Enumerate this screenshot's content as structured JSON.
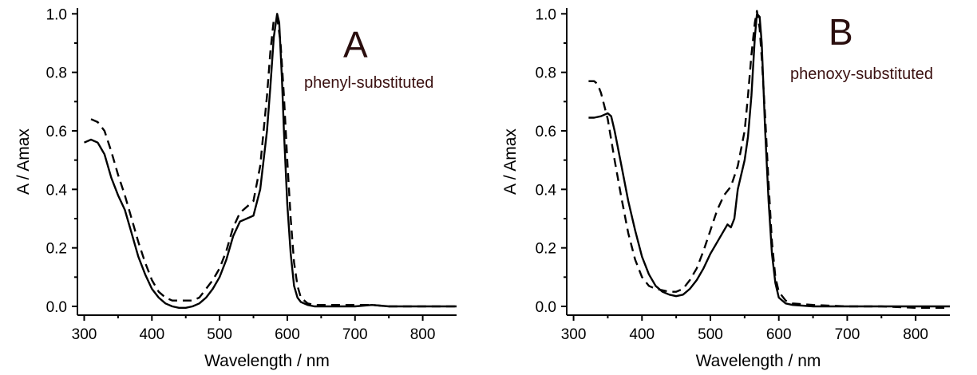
{
  "chart_data": [
    {
      "type": "line",
      "panel_label": "A",
      "annotation": "phenyl-substituted",
      "xlabel": "Wavelength / nm",
      "ylabel": "A / Amax",
      "xlim": [
        290,
        850
      ],
      "ylim": [
        -0.03,
        1.02
      ],
      "xticks": [
        300,
        400,
        500,
        600,
        700,
        800
      ],
      "yticks": [
        "0.0",
        "0.2",
        "0.4",
        "0.6",
        "0.8",
        "1.0"
      ],
      "series": [
        {
          "style": "solid",
          "x": [
            300,
            310,
            320,
            330,
            340,
            350,
            360,
            370,
            380,
            390,
            400,
            410,
            420,
            430,
            440,
            450,
            460,
            470,
            480,
            490,
            500,
            510,
            520,
            530,
            540,
            550,
            560,
            570,
            575,
            580,
            585,
            588,
            592,
            595,
            600,
            605,
            610,
            615,
            620,
            630,
            640,
            700,
            725,
            750,
            800,
            850
          ],
          "y": [
            0.56,
            0.57,
            0.56,
            0.52,
            0.44,
            0.38,
            0.33,
            0.25,
            0.17,
            0.11,
            0.06,
            0.03,
            0.01,
            0.0,
            -0.005,
            -0.005,
            0.0,
            0.01,
            0.03,
            0.06,
            0.1,
            0.16,
            0.24,
            0.29,
            0.3,
            0.31,
            0.4,
            0.6,
            0.75,
            0.92,
            1.0,
            0.97,
            0.78,
            0.6,
            0.35,
            0.18,
            0.07,
            0.03,
            0.015,
            0.005,
            0.0,
            0.0,
            0.005,
            0.0,
            0.0,
            0.0
          ]
        },
        {
          "style": "dashed",
          "x": [
            310,
            320,
            330,
            340,
            350,
            360,
            370,
            380,
            390,
            400,
            410,
            420,
            430,
            440,
            450,
            460,
            470,
            480,
            490,
            500,
            510,
            520,
            530,
            540,
            550,
            560,
            570,
            575,
            580,
            585,
            590,
            595,
            600,
            605,
            610,
            615,
            620,
            630,
            640,
            700,
            725,
            750,
            800,
            850
          ],
          "y": [
            0.64,
            0.63,
            0.6,
            0.53,
            0.45,
            0.38,
            0.3,
            0.22,
            0.15,
            0.09,
            0.05,
            0.03,
            0.02,
            0.02,
            0.02,
            0.02,
            0.03,
            0.06,
            0.09,
            0.13,
            0.19,
            0.27,
            0.32,
            0.34,
            0.36,
            0.48,
            0.72,
            0.87,
            0.98,
            0.99,
            0.9,
            0.72,
            0.5,
            0.3,
            0.15,
            0.07,
            0.03,
            0.01,
            0.005,
            0.005,
            0.005,
            0.0,
            0.0,
            0.0
          ]
        }
      ]
    },
    {
      "type": "line",
      "panel_label": "B",
      "annotation": "phenoxy-substituted",
      "xlabel": "Wavelength / nm",
      "ylabel": "A / Amax",
      "xlim": [
        290,
        850
      ],
      "ylim": [
        -0.03,
        1.02
      ],
      "xticks": [
        300,
        400,
        500,
        600,
        700,
        800
      ],
      "yticks": [
        "0.0",
        "0.2",
        "0.4",
        "0.6",
        "0.8",
        "1.0"
      ],
      "series": [
        {
          "style": "solid",
          "x": [
            322,
            330,
            340,
            345,
            350,
            355,
            360,
            370,
            380,
            390,
            400,
            410,
            420,
            430,
            440,
            450,
            460,
            470,
            480,
            490,
            500,
            510,
            520,
            525,
            530,
            535,
            540,
            550,
            555,
            560,
            565,
            568,
            572,
            575,
            578,
            580,
            585,
            590,
            595,
            600,
            610,
            620,
            650,
            700,
            750,
            800,
            850
          ],
          "y": [
            0.645,
            0.645,
            0.65,
            0.655,
            0.66,
            0.65,
            0.6,
            0.48,
            0.36,
            0.26,
            0.17,
            0.11,
            0.07,
            0.05,
            0.04,
            0.035,
            0.04,
            0.06,
            0.09,
            0.13,
            0.18,
            0.22,
            0.26,
            0.28,
            0.27,
            0.3,
            0.4,
            0.5,
            0.58,
            0.72,
            0.92,
            1.0,
            0.99,
            0.9,
            0.72,
            0.6,
            0.36,
            0.18,
            0.08,
            0.03,
            0.01,
            0.005,
            0.0,
            0.0,
            0.0,
            0.0,
            0.0
          ]
        },
        {
          "style": "dashed",
          "x": [
            322,
            330,
            335,
            340,
            350,
            360,
            370,
            380,
            390,
            400,
            410,
            420,
            430,
            440,
            450,
            460,
            470,
            480,
            490,
            500,
            510,
            520,
            530,
            540,
            550,
            555,
            560,
            565,
            568,
            572,
            575,
            580,
            585,
            590,
            595,
            600,
            610,
            620,
            650,
            700,
            750,
            800,
            850
          ],
          "y": [
            0.77,
            0.77,
            0.76,
            0.73,
            0.64,
            0.5,
            0.37,
            0.25,
            0.16,
            0.1,
            0.07,
            0.06,
            0.055,
            0.05,
            0.05,
            0.06,
            0.09,
            0.13,
            0.19,
            0.26,
            0.33,
            0.38,
            0.41,
            0.48,
            0.6,
            0.72,
            0.86,
            0.97,
            1.01,
            0.95,
            0.85,
            0.65,
            0.42,
            0.22,
            0.1,
            0.05,
            0.02,
            0.01,
            0.005,
            0.0,
            0.0,
            -0.005,
            -0.005
          ]
        }
      ]
    }
  ]
}
